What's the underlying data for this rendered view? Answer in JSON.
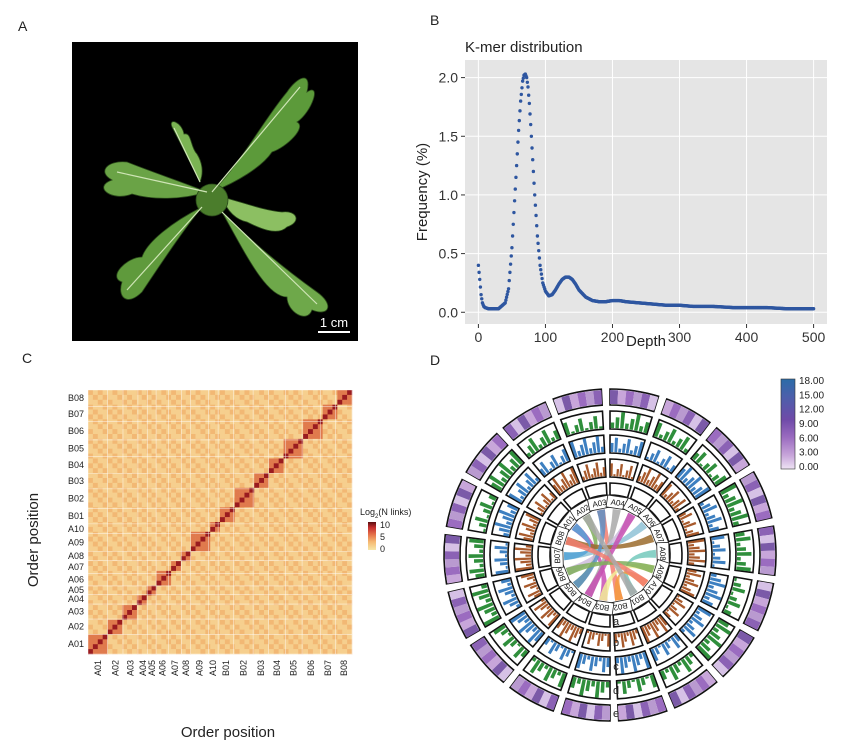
{
  "panels": {
    "a": "A",
    "b": "B",
    "c": "C",
    "d": "D"
  },
  "photo": {
    "scale_bar": "1 cm"
  },
  "chart_data": [
    {
      "type": "scatter",
      "panel": "B",
      "title": "K-mer distribution",
      "xlabel": "Depth",
      "ylabel": "Frequency (%)",
      "xlim": [
        -20,
        520
      ],
      "ylim": [
        -0.1,
        2.15
      ],
      "xticks": [
        "0",
        "100",
        "200",
        "300",
        "400",
        "500"
      ],
      "xtick_values": [
        0,
        100,
        200,
        300,
        400,
        500
      ],
      "yticks": [
        "0.0",
        "0.5",
        "1.0",
        "1.5",
        "2.0"
      ],
      "ytick_values": [
        0,
        0.5,
        1.0,
        1.5,
        2.0
      ],
      "grid": true,
      "series_color": "#2e56a0",
      "x": [
        0,
        2,
        4,
        6,
        8,
        10,
        15,
        20,
        30,
        40,
        45,
        50,
        55,
        60,
        63,
        66,
        68,
        70,
        72,
        74,
        76,
        78,
        80,
        84,
        88,
        92,
        96,
        100,
        105,
        110,
        115,
        120,
        125,
        130,
        135,
        140,
        145,
        150,
        160,
        170,
        180,
        190,
        200,
        210,
        220,
        240,
        260,
        280,
        300,
        320,
        350,
        380,
        400,
        430,
        460,
        500
      ],
      "y": [
        0.4,
        0.28,
        0.15,
        0.08,
        0.05,
        0.04,
        0.03,
        0.03,
        0.03,
        0.08,
        0.2,
        0.55,
        1.05,
        1.55,
        1.8,
        1.97,
        2.02,
        2.03,
        2.0,
        1.92,
        1.78,
        1.6,
        1.4,
        1.0,
        0.65,
        0.4,
        0.25,
        0.18,
        0.14,
        0.15,
        0.19,
        0.24,
        0.28,
        0.3,
        0.3,
        0.28,
        0.24,
        0.19,
        0.13,
        0.1,
        0.09,
        0.09,
        0.1,
        0.1,
        0.09,
        0.08,
        0.07,
        0.06,
        0.06,
        0.05,
        0.05,
        0.04,
        0.04,
        0.04,
        0.03,
        0.03
      ]
    },
    {
      "type": "heatmap",
      "panel": "C",
      "xlabel": "Order position",
      "ylabel": "Order position",
      "xticks": [
        "A01",
        "A02",
        "A03",
        "A04",
        "A05",
        "A06",
        "A07",
        "A08",
        "A09",
        "A10",
        "B01",
        "B02",
        "B03",
        "B04",
        "B05",
        "B06",
        "B07",
        "B08"
      ],
      "yticks": [
        "A01",
        "A02",
        "A03",
        "A04",
        "A05",
        "A06",
        "A07",
        "A08",
        "A09",
        "A10",
        "B01",
        "B02",
        "B03",
        "B04",
        "B05",
        "B06",
        "B07",
        "B08"
      ],
      "chrom_sizes": [
        4.2,
        3.3,
        3.2,
        2.1,
        1.8,
        2.7,
        2.7,
        2.0,
        3.8,
        2.1,
        3.3,
        4.2,
        3.3,
        3.6,
        3.6,
        3.9,
        3.3,
        3.5
      ],
      "legend_title": "Log",
      "legend_sub": "2",
      "legend_title_rest": "(N links)",
      "legend_ticks": [
        "10",
        "5",
        "0"
      ],
      "colors": [
        "#f7e7a8",
        "#f5b770",
        "#e5724a",
        "#c62e2e",
        "#5a0d10"
      ]
    },
    {
      "type": "circos",
      "panel": "D",
      "chromosomes": [
        "A01",
        "A02",
        "A03",
        "A04",
        "A05",
        "A06",
        "A07",
        "A08",
        "A09",
        "A10",
        "B01",
        "B02",
        "B03",
        "B04",
        "B05",
        "B06",
        "B07",
        "B08"
      ],
      "track_labels": [
        "a",
        "b",
        "c",
        "d",
        "e"
      ],
      "legend_ticks": [
        "18.00",
        "15.00",
        "12.00",
        "9.00",
        "6.00",
        "3.00",
        "0.00"
      ],
      "legend_colors": [
        "#2b6ca8",
        "#4c5fab",
        "#6f4aa8",
        "#9b6cc0",
        "#c8a6da",
        "#eee3f4"
      ],
      "ribbon_colors": [
        "#c84fb3",
        "#7fae5a",
        "#f27e70",
        "#a9a9a9",
        "#cdbbdc",
        "#8fc2d6",
        "#9b6b2c",
        "#74c9bc",
        "#f2ee98",
        "#f59a3e",
        "#54a3d6",
        "#5d8fc4"
      ],
      "track_colors": {
        "b": "#a85a2c",
        "c": "#3d7fc0",
        "d": "#2f8f3c",
        "e": "#7b5aa8"
      }
    }
  ]
}
